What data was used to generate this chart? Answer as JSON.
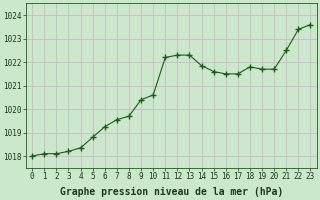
{
  "x": [
    0,
    1,
    2,
    3,
    4,
    5,
    6,
    7,
    8,
    9,
    10,
    11,
    12,
    13,
    14,
    15,
    16,
    17,
    18,
    19,
    20,
    21,
    22,
    23
  ],
  "y": [
    1018.0,
    1018.1,
    1018.1,
    1018.2,
    1018.35,
    1018.8,
    1019.25,
    1019.55,
    1019.7,
    1020.4,
    1020.6,
    1022.2,
    1022.3,
    1022.3,
    1021.85,
    1021.6,
    1021.5,
    1021.5,
    1021.8,
    1021.7,
    1021.7,
    1022.5,
    1023.4,
    1023.6
  ],
  "ylim": [
    1017.5,
    1024.5
  ],
  "yticks": [
    1018,
    1019,
    1020,
    1021,
    1022,
    1023,
    1024
  ],
  "xticks": [
    0,
    1,
    2,
    3,
    4,
    5,
    6,
    7,
    8,
    9,
    10,
    11,
    12,
    13,
    14,
    15,
    16,
    17,
    18,
    19,
    20,
    21,
    22,
    23
  ],
  "line_color": "#1a5c1a",
  "marker_color": "#1a5c1a",
  "bg_color": "#cce8cc",
  "grid_color": "#c8b8c8",
  "xlabel": "Graphe pression niveau de la mer (hPa)",
  "xlabel_color": "#1a3a1a",
  "xlabel_fontsize": 7.0,
  "tick_color": "#1a3a1a",
  "tick_fontsize": 5.5,
  "ytick_fontsize": 5.5,
  "outer_bg": "#cce8cc"
}
